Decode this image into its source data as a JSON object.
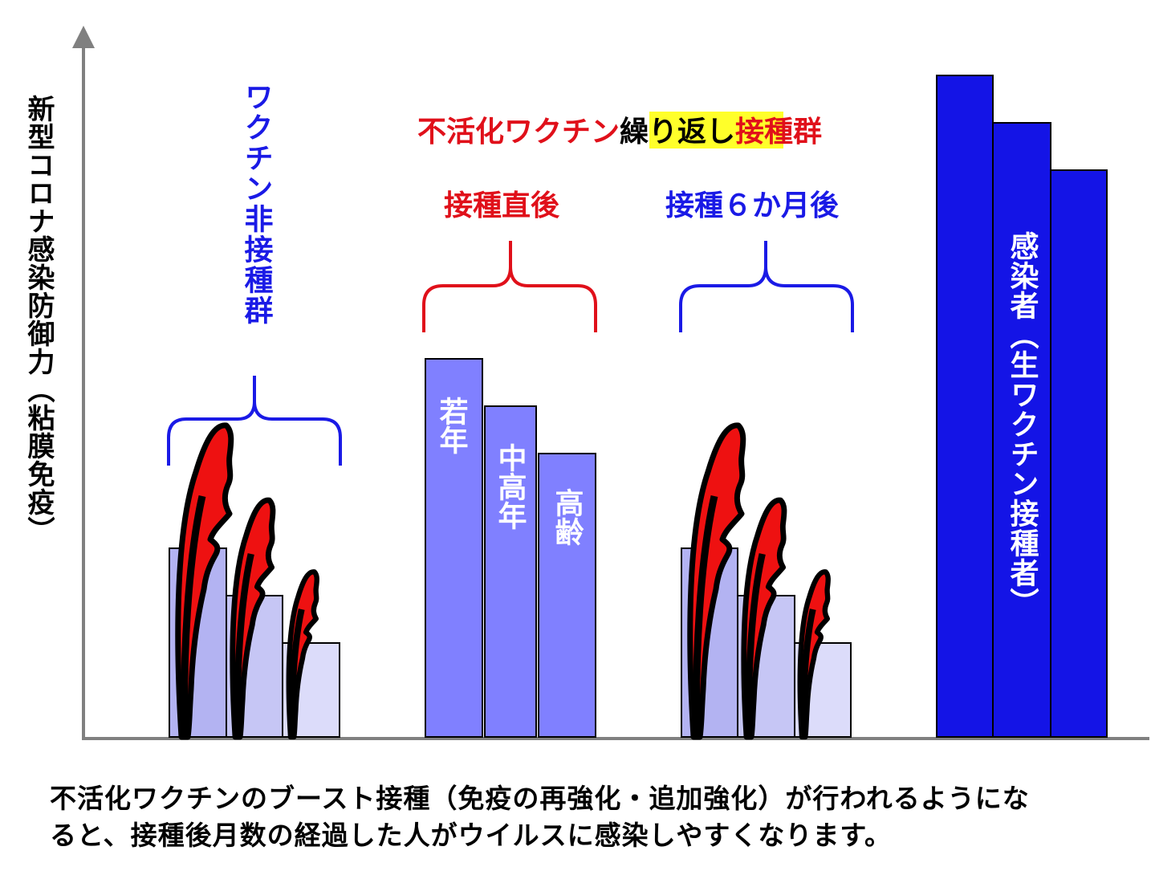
{
  "y_axis_label": "新型コロナ感染防御力（粘膜免疫）",
  "header": {
    "part1": "不活化ワクチン",
    "part2_highlight": "繰り返し",
    "part3": "接種群"
  },
  "groups": {
    "unvaccinated": {
      "label": "ワクチン非接種群",
      "color": "#1a1ae6"
    },
    "right_after": {
      "label": "接種直後",
      "color": "#e0101a"
    },
    "six_months": {
      "label": "接種６か月後",
      "color": "#1a1ae6"
    },
    "infected": {
      "label": "感染者（生ワクチン接種者）"
    }
  },
  "bar_labels": {
    "young": "若年",
    "middle": "中高年",
    "elderly": "高齢"
  },
  "caption": {
    "line1": "不活化ワクチンのブースト接種（免疫の再強化・追加強化）が行われるようにな",
    "line2": "ると、接種後月数の経過した人がウイルスに感染しやすくなります。"
  },
  "colors": {
    "highlight": "#ffff2a",
    "bar_unvax_1": "#b3b3f2",
    "bar_unvax_2": "#c6c6f5",
    "bar_unvax_3": "#dcdcfa",
    "bar_after": "#8080ff",
    "bar_infected": "#1414e6",
    "flame": "#ee1111"
  }
}
